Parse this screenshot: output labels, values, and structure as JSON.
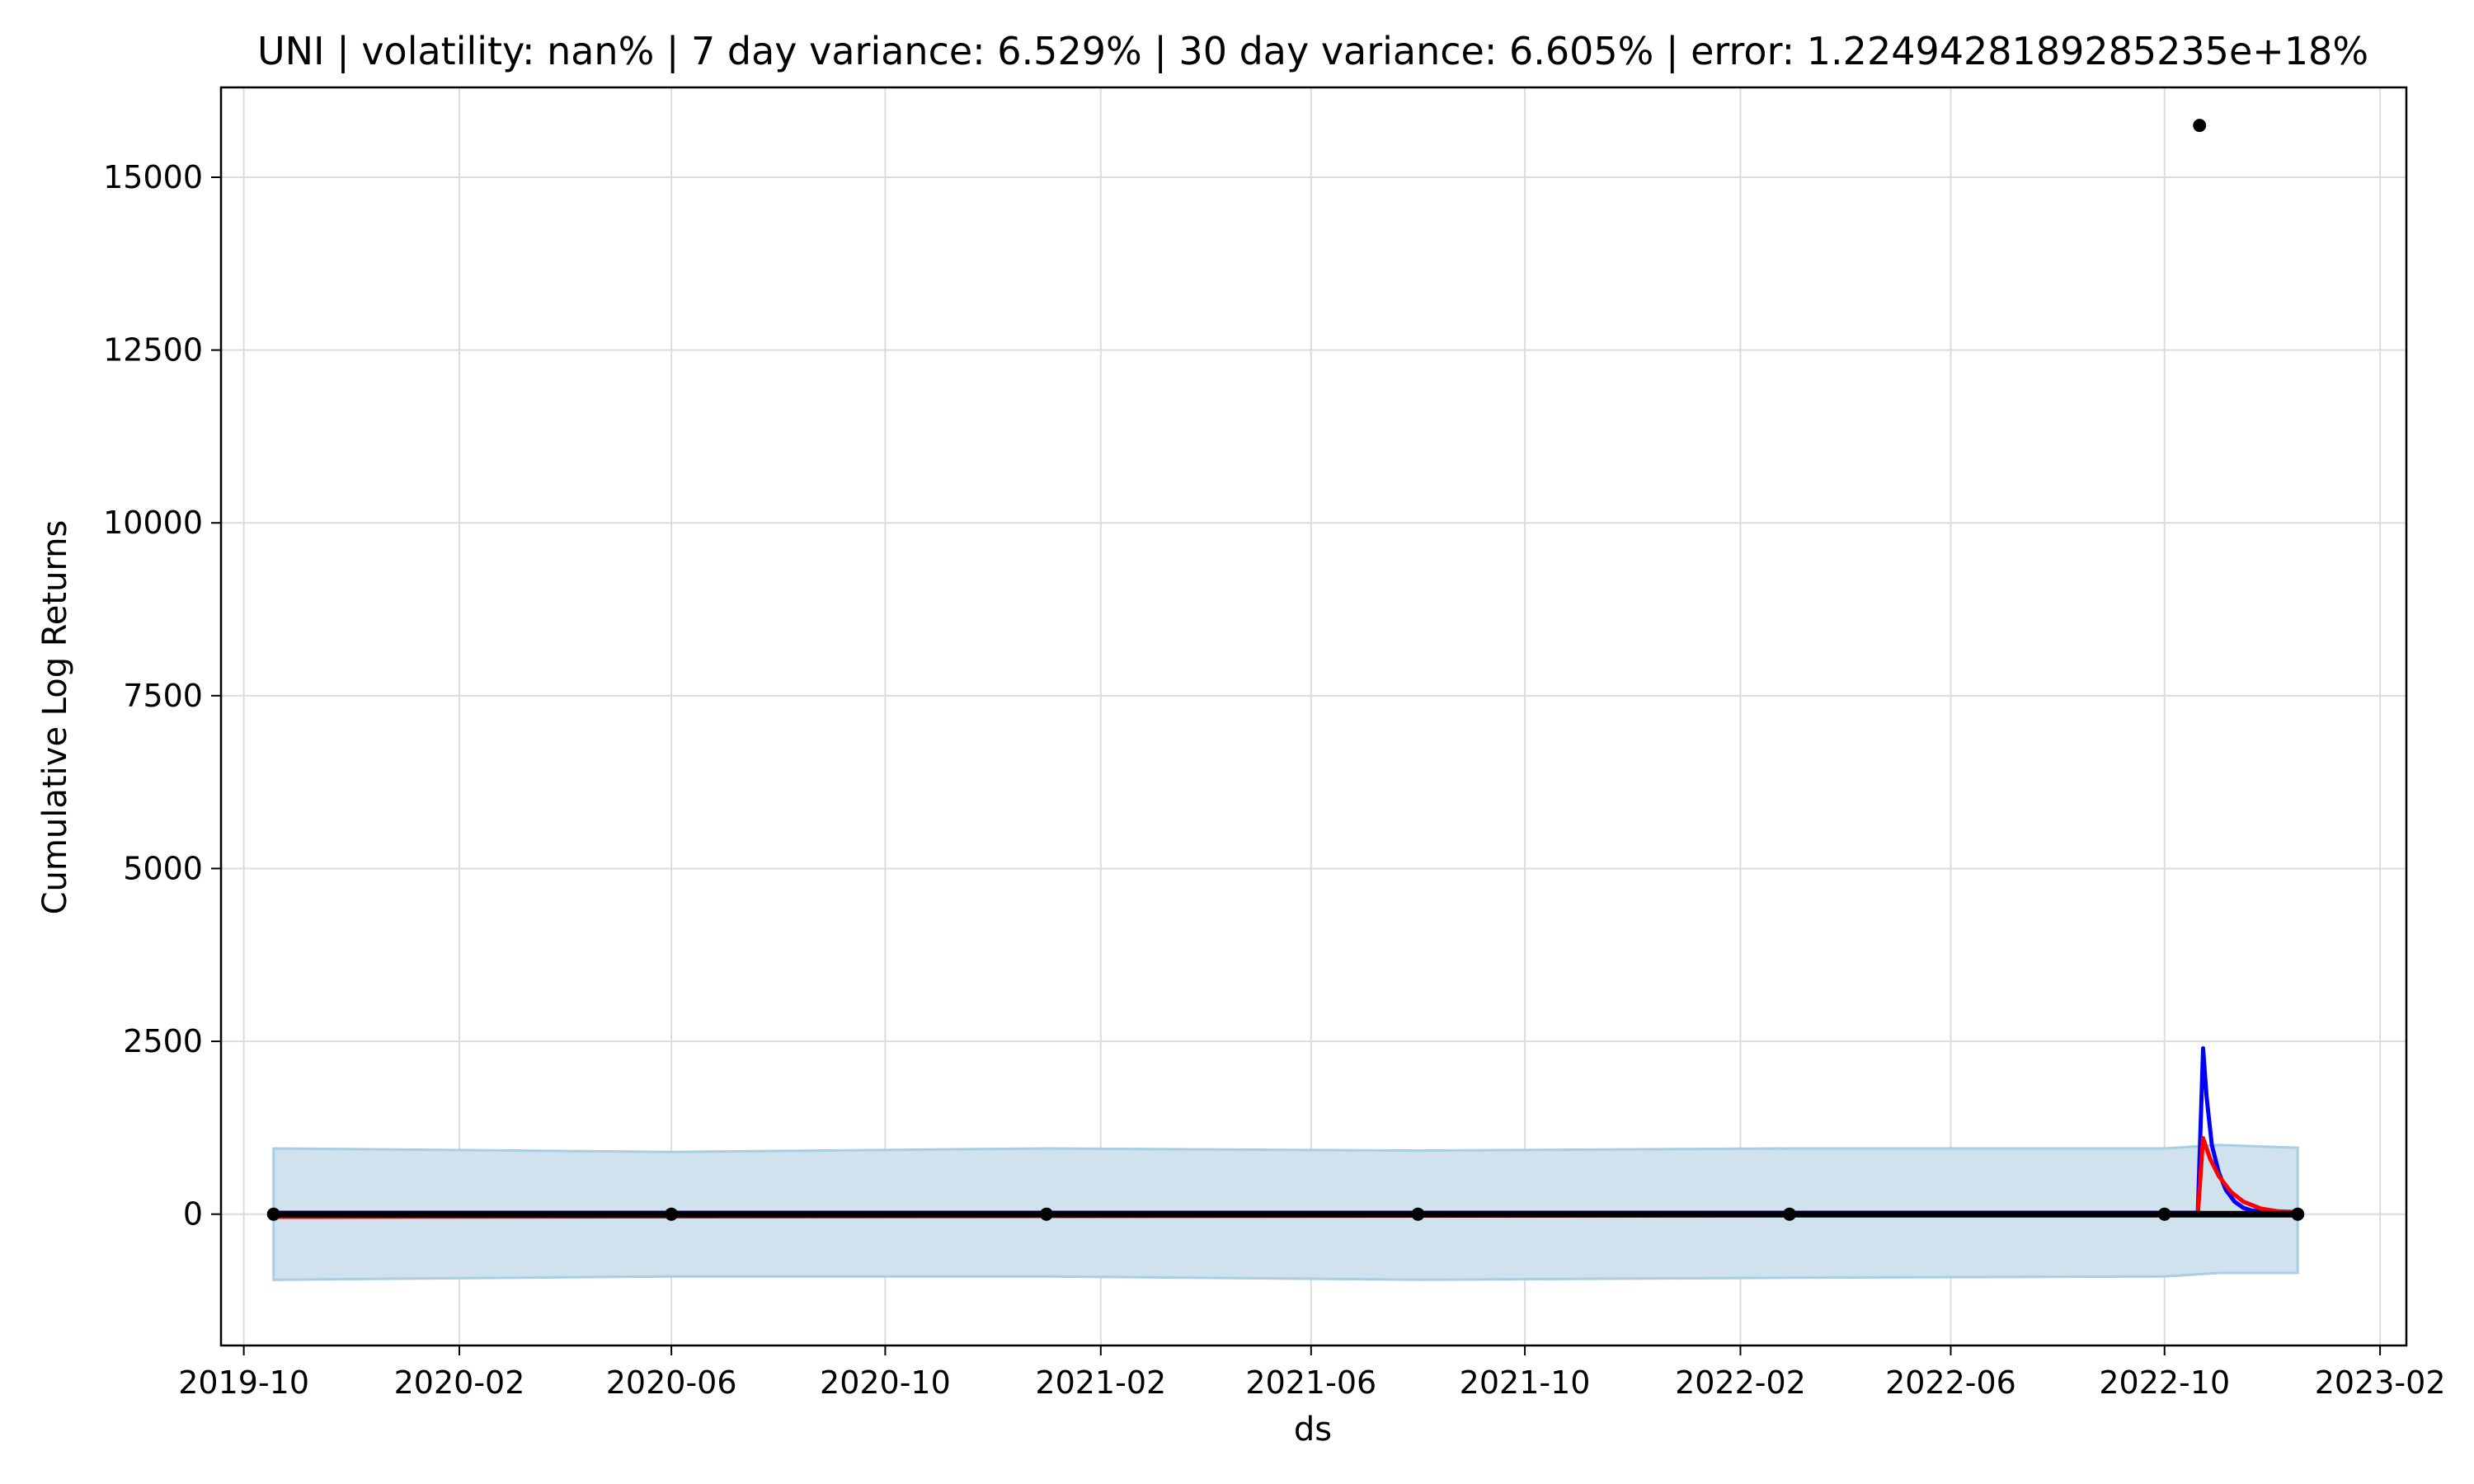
{
  "chart_data": {
    "type": "line",
    "title": "UNI | volatility: nan% | 7 day variance: 6.529% | 30 day variance: 6.605% | error: 1.2249428189285235e+18%",
    "xlabel": "ds",
    "ylabel": "Cumulative Log Returns",
    "xlim": [
      "2019-09-18",
      "2023-02-16"
    ],
    "ylim": [
      -1900,
      16300
    ],
    "grid": true,
    "x_ticks": [
      "2019-10",
      "2020-02",
      "2020-06",
      "2020-10",
      "2021-02",
      "2021-06",
      "2021-10",
      "2022-02",
      "2022-06",
      "2022-10",
      "2023-02"
    ],
    "y_ticks": [
      0,
      2500,
      5000,
      7500,
      10000,
      12500,
      15000
    ],
    "y_tick_labels": [
      "0",
      "2500",
      "5000",
      "7500",
      "10000",
      "12500",
      "15000"
    ],
    "colors": {
      "band_fill": "#cfe2ee",
      "band_edge": "#a9cde3",
      "blue_line": "#0000ff",
      "red_line": "#ff0000",
      "actual": "#000000",
      "grid": "#dcdcdc"
    },
    "series": [
      {
        "kind": "band",
        "x": [
          "2019-10-18",
          "2020-06-01",
          "2021-01-01",
          "2021-08-01",
          "2022-03-01",
          "2022-10-01",
          "2022-11-01",
          "2022-12-16"
        ],
        "upper": [
          950,
          900,
          950,
          920,
          950,
          950,
          1000,
          960
        ],
        "lower": [
          -950,
          -900,
          -900,
          -950,
          -920,
          -900,
          -850,
          -850
        ]
      },
      {
        "kind": "line",
        "color_key": "blue_line",
        "x": [
          "2019-10-18",
          "2022-10-20",
          "2022-10-23",
          "2022-10-25",
          "2022-10-28",
          "2022-11-01",
          "2022-11-05",
          "2022-11-10",
          "2022-11-15",
          "2022-11-20",
          "2022-12-01",
          "2022-12-16"
        ],
        "y": [
          20,
          20,
          2400,
          1700,
          1000,
          600,
          350,
          180,
          90,
          50,
          30,
          20
        ]
      },
      {
        "kind": "line",
        "color_key": "red_line",
        "x": [
          "2019-10-18",
          "2022-10-20",
          "2022-10-23",
          "2022-10-27",
          "2022-11-01",
          "2022-11-08",
          "2022-11-15",
          "2022-11-25",
          "2022-12-05",
          "2022-12-16"
        ],
        "y": [
          -40,
          -10,
          1100,
          800,
          550,
          320,
          180,
          80,
          40,
          30
        ]
      },
      {
        "kind": "points",
        "color_key": "actual",
        "x": [
          "2019-10-18",
          "2020-06-01",
          "2021-01-01",
          "2021-08-01",
          "2022-03-01",
          "2022-10-01",
          "2022-10-21",
          "2022-12-16"
        ],
        "y": [
          0,
          0,
          0,
          0,
          0,
          0,
          15750,
          0
        ]
      }
    ]
  }
}
